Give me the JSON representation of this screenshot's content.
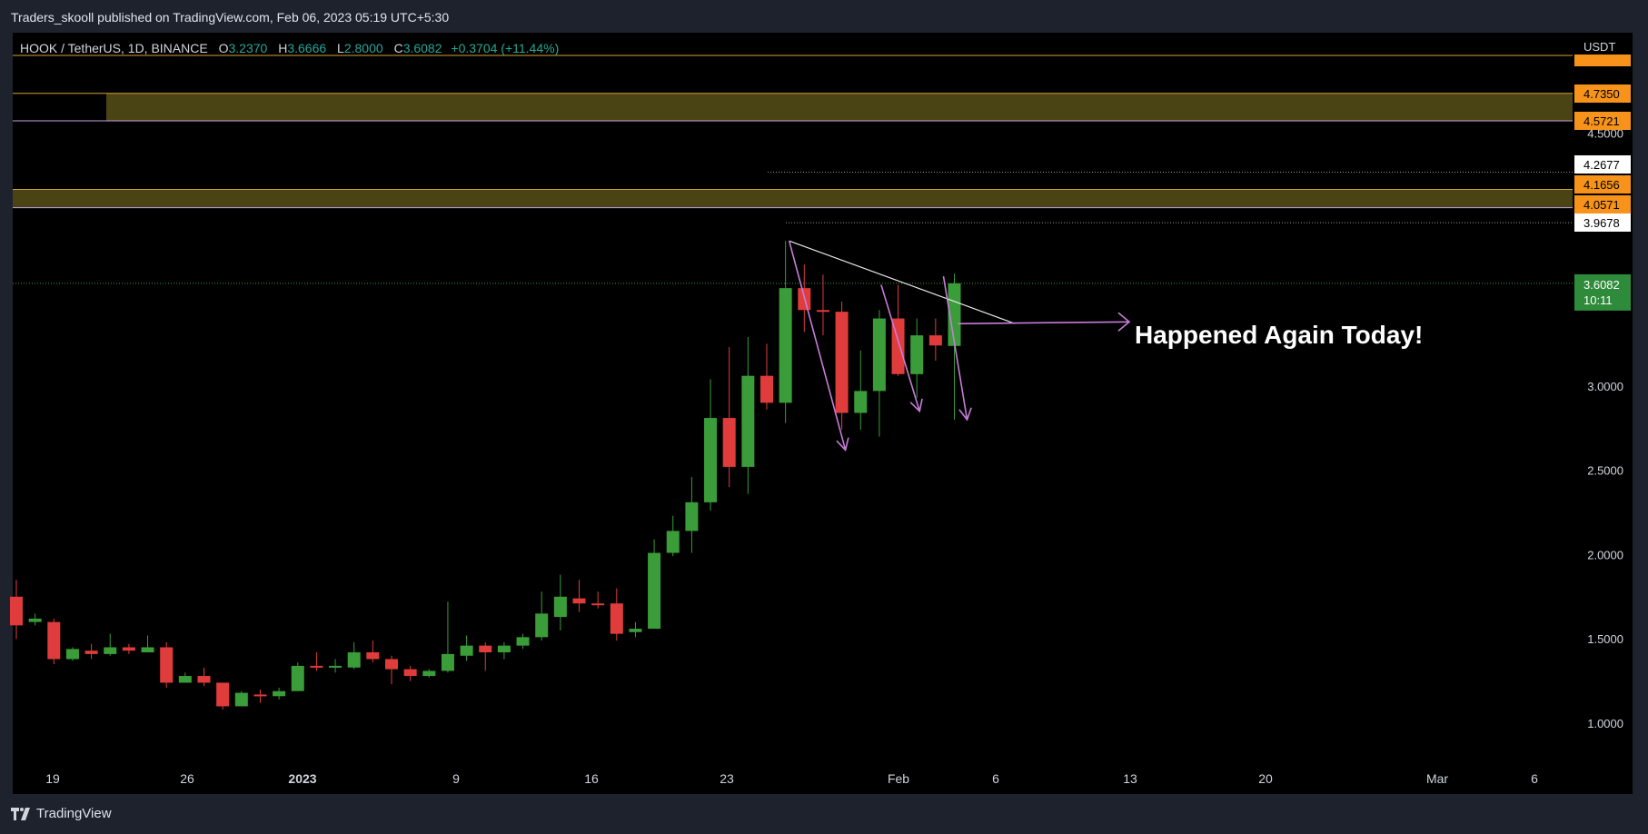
{
  "header": {
    "published": "Traders_skooll published on TradingView.com, Feb 06, 2023 05:19 UTC+5:30"
  },
  "legend": {
    "symbol": "HOOK / TetherUS, 1D, BINANCE",
    "open_label": "O",
    "open": "3.2370",
    "high_label": "H",
    "high": "3.6666",
    "low_label": "L",
    "low": "2.8000",
    "close_label": "C",
    "close": "3.6082",
    "change": "+0.3704 (+11.44%)"
  },
  "footer": {
    "brand": "TradingView"
  },
  "colors": {
    "up": "#3a9d3a",
    "down": "#e03c3c",
    "zone_fill": "#4a4314",
    "zone_border": "#d4a03a",
    "accent_orange": "#f7931a",
    "arrow": "#c77dd8"
  },
  "chart_data": {
    "type": "candlestick",
    "currency": "USDT",
    "y_ticks": [
      "1.0000",
      "1.5000",
      "2.0000",
      "2.5000",
      "3.0000",
      "4.5000"
    ],
    "x_ticks": [
      "19",
      "26",
      "2023",
      "9",
      "16",
      "23",
      "Feb",
      "6",
      "13",
      "20",
      "Mar",
      "6"
    ],
    "price_labels": [
      {
        "value": "4.7350",
        "style": "orange"
      },
      {
        "value": "4.5721",
        "style": "orange"
      },
      {
        "value": "4.2677",
        "style": "white"
      },
      {
        "value": "4.1656",
        "style": "orange"
      },
      {
        "value": "4.0571",
        "style": "orange"
      },
      {
        "value": "3.9678",
        "style": "white"
      },
      {
        "value": "3.6082",
        "style": "green",
        "countdown": "10:11"
      }
    ],
    "zones": [
      {
        "top": 4.735,
        "bottom": 4.5721
      },
      {
        "top": 4.1656,
        "bottom": 4.0571
      }
    ],
    "annotation": "Happened Again Today!",
    "candles": [
      {
        "o": 1.75,
        "h": 1.85,
        "l": 1.5,
        "c": 1.58
      },
      {
        "o": 1.6,
        "h": 1.65,
        "l": 1.58,
        "c": 1.62
      },
      {
        "o": 1.6,
        "h": 1.62,
        "l": 1.35,
        "c": 1.38
      },
      {
        "o": 1.38,
        "h": 1.45,
        "l": 1.37,
        "c": 1.44
      },
      {
        "o": 1.43,
        "h": 1.47,
        "l": 1.38,
        "c": 1.41
      },
      {
        "o": 1.41,
        "h": 1.53,
        "l": 1.4,
        "c": 1.45
      },
      {
        "o": 1.45,
        "h": 1.47,
        "l": 1.41,
        "c": 1.43
      },
      {
        "o": 1.42,
        "h": 1.52,
        "l": 1.42,
        "c": 1.45
      },
      {
        "o": 1.45,
        "h": 1.48,
        "l": 1.21,
        "c": 1.24
      },
      {
        "o": 1.24,
        "h": 1.3,
        "l": 1.24,
        "c": 1.28
      },
      {
        "o": 1.28,
        "h": 1.33,
        "l": 1.22,
        "c": 1.24
      },
      {
        "o": 1.24,
        "h": 1.24,
        "l": 1.08,
        "c": 1.1
      },
      {
        "o": 1.1,
        "h": 1.19,
        "l": 1.1,
        "c": 1.18
      },
      {
        "o": 1.17,
        "h": 1.2,
        "l": 1.12,
        "c": 1.16
      },
      {
        "o": 1.16,
        "h": 1.21,
        "l": 1.14,
        "c": 1.19
      },
      {
        "o": 1.19,
        "h": 1.36,
        "l": 1.19,
        "c": 1.34
      },
      {
        "o": 1.34,
        "h": 1.42,
        "l": 1.31,
        "c": 1.33
      },
      {
        "o": 1.33,
        "h": 1.38,
        "l": 1.3,
        "c": 1.34
      },
      {
        "o": 1.33,
        "h": 1.48,
        "l": 1.32,
        "c": 1.42
      },
      {
        "o": 1.42,
        "h": 1.49,
        "l": 1.36,
        "c": 1.38
      },
      {
        "o": 1.38,
        "h": 1.4,
        "l": 1.23,
        "c": 1.32
      },
      {
        "o": 1.32,
        "h": 1.34,
        "l": 1.25,
        "c": 1.28
      },
      {
        "o": 1.28,
        "h": 1.32,
        "l": 1.27,
        "c": 1.31
      },
      {
        "o": 1.31,
        "h": 1.72,
        "l": 1.3,
        "c": 1.41
      },
      {
        "o": 1.4,
        "h": 1.52,
        "l": 1.37,
        "c": 1.46
      },
      {
        "o": 1.46,
        "h": 1.48,
        "l": 1.31,
        "c": 1.42
      },
      {
        "o": 1.42,
        "h": 1.48,
        "l": 1.38,
        "c": 1.46
      },
      {
        "o": 1.46,
        "h": 1.53,
        "l": 1.44,
        "c": 1.51
      },
      {
        "o": 1.51,
        "h": 1.78,
        "l": 1.49,
        "c": 1.65
      },
      {
        "o": 1.63,
        "h": 1.88,
        "l": 1.55,
        "c": 1.75
      },
      {
        "o": 1.74,
        "h": 1.85,
        "l": 1.66,
        "c": 1.71
      },
      {
        "o": 1.71,
        "h": 1.78,
        "l": 1.68,
        "c": 1.7
      },
      {
        "o": 1.71,
        "h": 1.8,
        "l": 1.49,
        "c": 1.53
      },
      {
        "o": 1.54,
        "h": 1.6,
        "l": 1.51,
        "c": 1.56
      },
      {
        "o": 1.56,
        "h": 2.09,
        "l": 1.56,
        "c": 2.01
      },
      {
        "o": 2.01,
        "h": 2.23,
        "l": 1.99,
        "c": 2.14
      },
      {
        "o": 2.14,
        "h": 2.46,
        "l": 2.01,
        "c": 2.31
      },
      {
        "o": 2.31,
        "h": 3.04,
        "l": 2.26,
        "c": 2.81
      },
      {
        "o": 2.81,
        "h": 3.23,
        "l": 2.4,
        "c": 2.52
      },
      {
        "o": 2.52,
        "h": 3.29,
        "l": 2.36,
        "c": 3.06
      },
      {
        "o": 3.06,
        "h": 3.25,
        "l": 2.86,
        "c": 2.9
      },
      {
        "o": 2.9,
        "h": 3.86,
        "l": 2.78,
        "c": 3.58
      },
      {
        "o": 3.58,
        "h": 3.72,
        "l": 3.32,
        "c": 3.45
      },
      {
        "o": 3.45,
        "h": 3.66,
        "l": 3.3,
        "c": 3.44
      },
      {
        "o": 3.44,
        "h": 3.5,
        "l": 2.74,
        "c": 2.84
      },
      {
        "o": 2.84,
        "h": 3.21,
        "l": 2.74,
        "c": 2.97
      },
      {
        "o": 2.97,
        "h": 3.45,
        "l": 2.7,
        "c": 3.4
      },
      {
        "o": 3.4,
        "h": 3.6,
        "l": 3.06,
        "c": 3.07
      },
      {
        "o": 3.07,
        "h": 3.4,
        "l": 2.93,
        "c": 3.3
      },
      {
        "o": 3.3,
        "h": 3.4,
        "l": 3.15,
        "c": 3.24
      },
      {
        "o": 3.237,
        "h": 3.6666,
        "l": 2.8,
        "c": 3.6082
      }
    ]
  }
}
